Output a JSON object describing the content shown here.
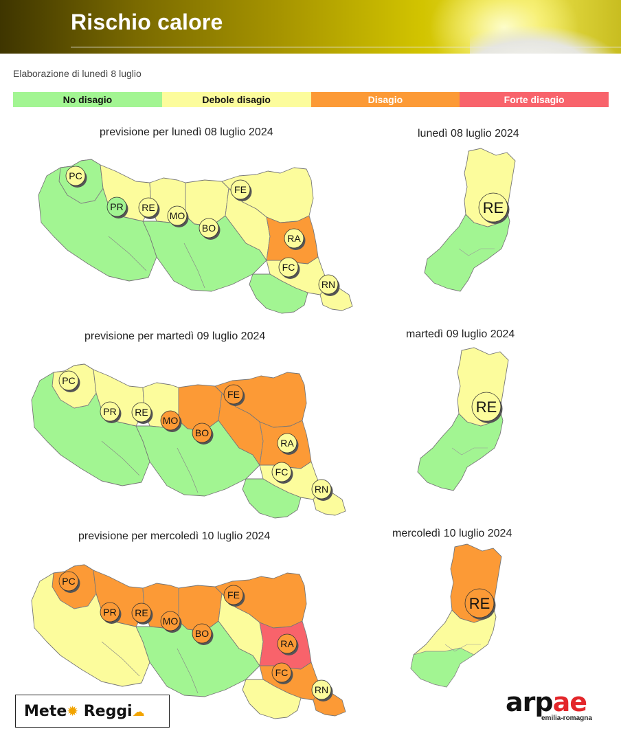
{
  "header": {
    "title": "Rischio calore"
  },
  "subtitle": "Elaborazione di lunedì 8 luglio",
  "legend": [
    {
      "label": "No disagio",
      "color": "#a2f592",
      "text_color": "#111111"
    },
    {
      "label": "Debole disagio",
      "color": "#fcfc9c",
      "text_color": "#111111"
    },
    {
      "label": "Disagio",
      "color": "#fc9a36",
      "text_color": "#ffffff"
    },
    {
      "label": "Forte disagio",
      "color": "#f8636b",
      "text_color": "#ffffff"
    }
  ],
  "days": [
    {
      "region_title": "previsione per lunedì 08 luglio 2024",
      "province_title": "lunedì 08 luglio 2024",
      "zones": {
        "west": "green",
        "pc_area": "green",
        "parma_n": "yellow",
        "re_n": "yellow",
        "mo_n": "yellow",
        "fe": "yellow",
        "mountains": "green",
        "bo_plain": "yellow",
        "ra": "orange",
        "fc": "yellow",
        "fc_hills": "green",
        "rn": "yellow"
      },
      "badges": {
        "PC": "yellow",
        "PR": "green",
        "RE": "yellow",
        "MO": "yellow",
        "BO": "yellow",
        "FE": "yellow",
        "RA": "yellow",
        "FC": "yellow",
        "RN": "yellow"
      },
      "province": {
        "north": "yellow",
        "south": "green",
        "badge": "yellow",
        "label": "RE"
      }
    },
    {
      "region_title": "previsione per martedì 09 luglio 2024",
      "province_title": "martedì 09 luglio 2024",
      "zones": {
        "west": "green",
        "pc_area": "yellow",
        "parma_n": "yellow",
        "re_n": "yellow",
        "mo_n": "orange",
        "fe": "orange",
        "mountains": "green",
        "bo_plain": "orange",
        "ra": "orange",
        "fc": "yellow",
        "fc_hills": "green",
        "rn": "yellow"
      },
      "badges": {
        "PC": "yellow",
        "PR": "yellow",
        "RE": "yellow",
        "MO": "orange",
        "BO": "orange",
        "FE": "orange",
        "RA": "yellow",
        "FC": "yellow",
        "RN": "yellow"
      },
      "province": {
        "north": "yellow",
        "south": "green",
        "badge": "yellow",
        "label": "RE"
      }
    },
    {
      "region_title": "previsione per mercoledì 10 luglio 2024",
      "province_title": "mercoledì 10 luglio 2024",
      "zones": {
        "west": "yellow",
        "pc_area": "orange",
        "parma_n": "orange",
        "re_n": "orange",
        "mo_n": "orange",
        "fe": "orange",
        "mountains": "green",
        "bo_plain": "yellow",
        "ra": "red",
        "fc": "orange",
        "fc_hills": "yellow",
        "rn": "orange"
      },
      "badges": {
        "PC": "orange",
        "PR": "orange",
        "RE": "orange",
        "MO": "orange",
        "BO": "orange",
        "FE": "orange",
        "RA": "orange",
        "FC": "orange",
        "RN": "yellow"
      },
      "province": {
        "north": "orange",
        "south": "yellow",
        "south_tip": "green",
        "badge": "orange",
        "label": "RE"
      }
    }
  ],
  "level_colors": {
    "green": "#a2f592",
    "yellow": "#fcfc9c",
    "orange": "#fc9a36",
    "red": "#f8636b"
  },
  "logos": {
    "meteo_left": "Mete",
    "meteo_right": "Reggi",
    "arpae_word": "arpae",
    "arpae_sub": "emilia-romagna"
  }
}
